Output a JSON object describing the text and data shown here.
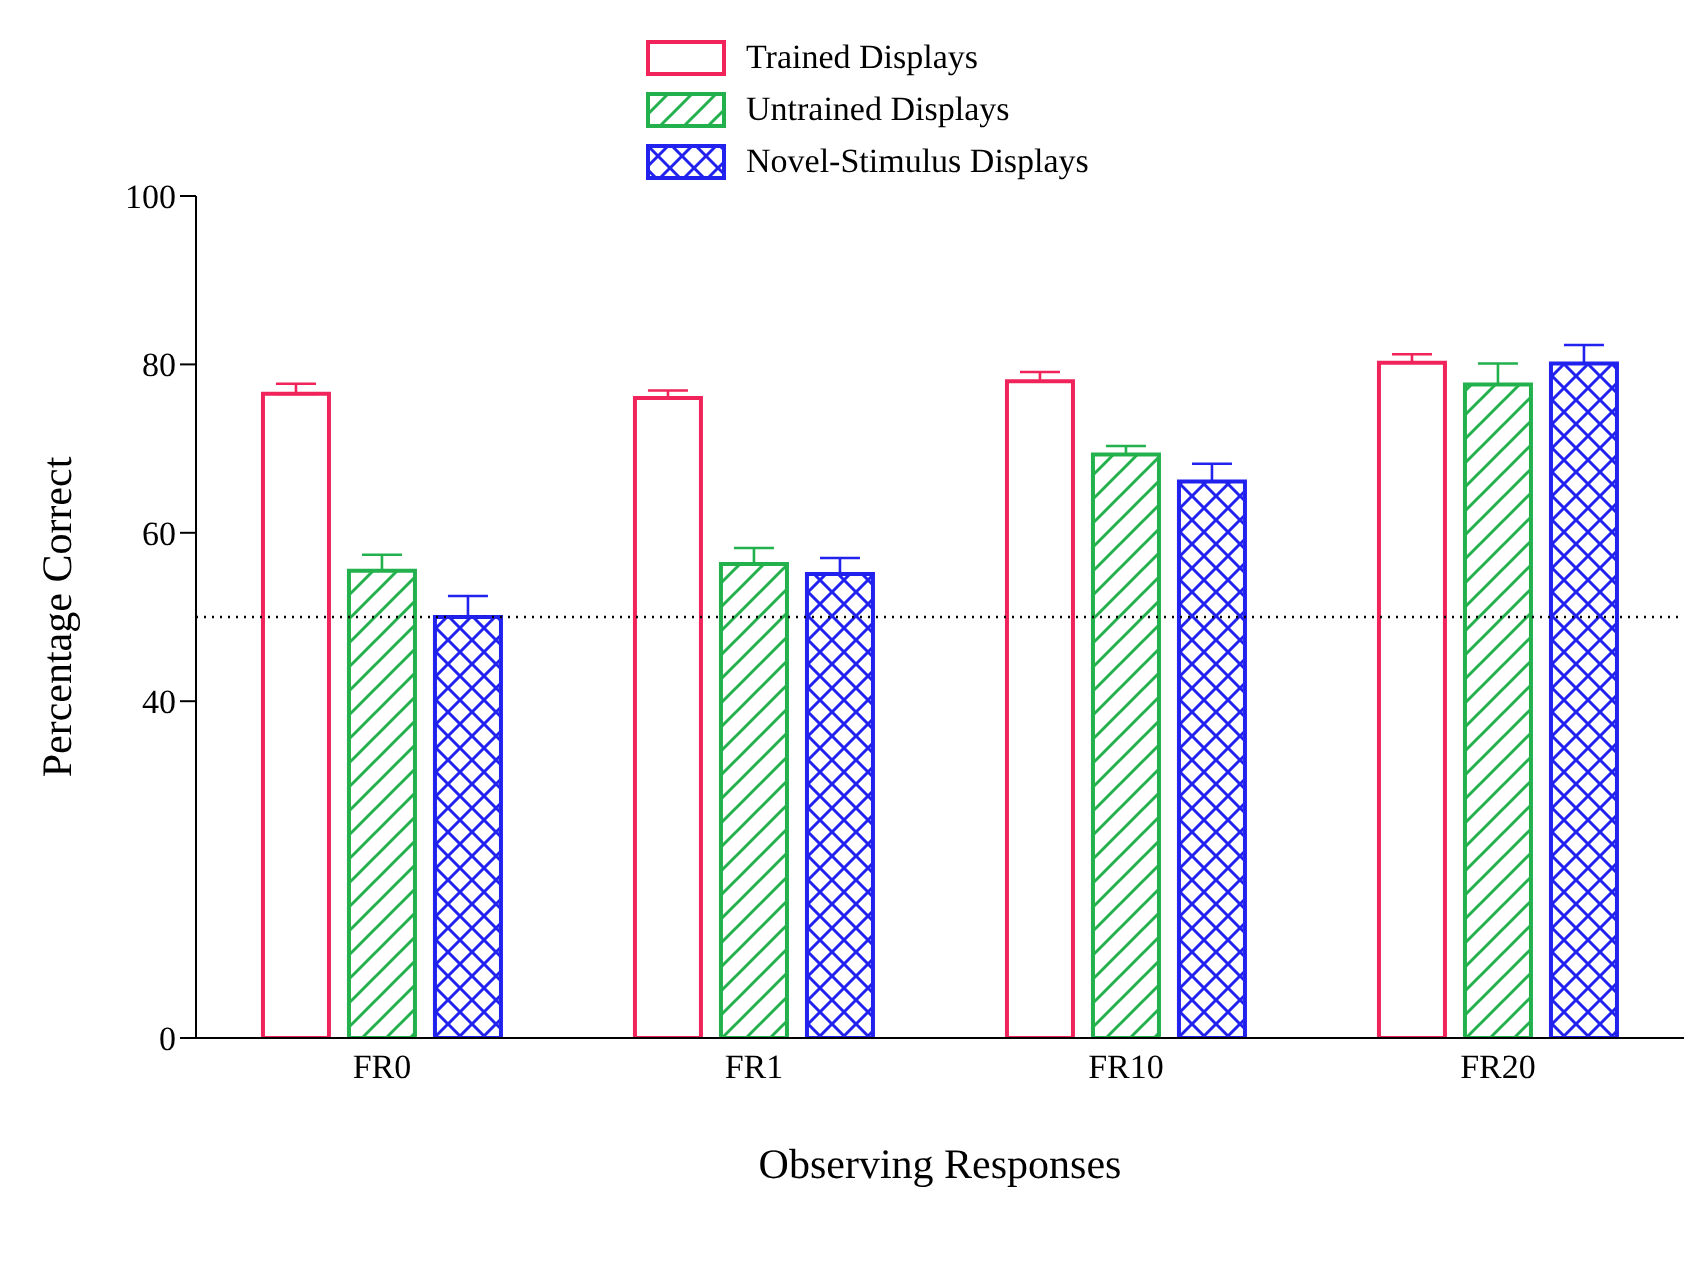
{
  "chart_data": {
    "type": "bar",
    "xlabel": "Observing Responses",
    "ylabel": "Percentage Correct",
    "categories": [
      "FR0",
      "FR1",
      "FR10",
      "FR20"
    ],
    "series": [
      {
        "name": "Trained Displays",
        "color": "#f0245a",
        "values": [
          76.5,
          76,
          78,
          80.2
        ],
        "errors": [
          [
            76.5,
            77.7
          ],
          [
            76,
            76.9
          ],
          [
            78,
            79.1
          ],
          [
            80.2,
            81.2
          ]
        ]
      },
      {
        "name": "Untrained Displays",
        "color": "#22b14c",
        "values": [
          55.5,
          56.3,
          69.3,
          77.6
        ],
        "errors": [
          [
            55.5,
            57.4
          ],
          [
            56.3,
            58.2
          ],
          [
            69.3,
            70.3
          ],
          [
            77.6,
            80.1
          ]
        ]
      },
      {
        "name": "Novel-Stimulus Displays",
        "color": "#2222ee",
        "values": [
          50,
          55.1,
          66.1,
          80.1
        ],
        "errors": [
          [
            50,
            52.5
          ],
          [
            55.1,
            57
          ],
          [
            66.1,
            68.2
          ],
          [
            80.1,
            82.3
          ]
        ]
      }
    ],
    "ylim": [
      0,
      100
    ],
    "yticks": [
      0,
      40,
      60,
      80,
      100
    ],
    "ref_lines": [
      {
        "axis": "y",
        "value": 50,
        "line_style": "dotted",
        "color": "#000000"
      }
    ],
    "legend": "top",
    "grid": false
  }
}
